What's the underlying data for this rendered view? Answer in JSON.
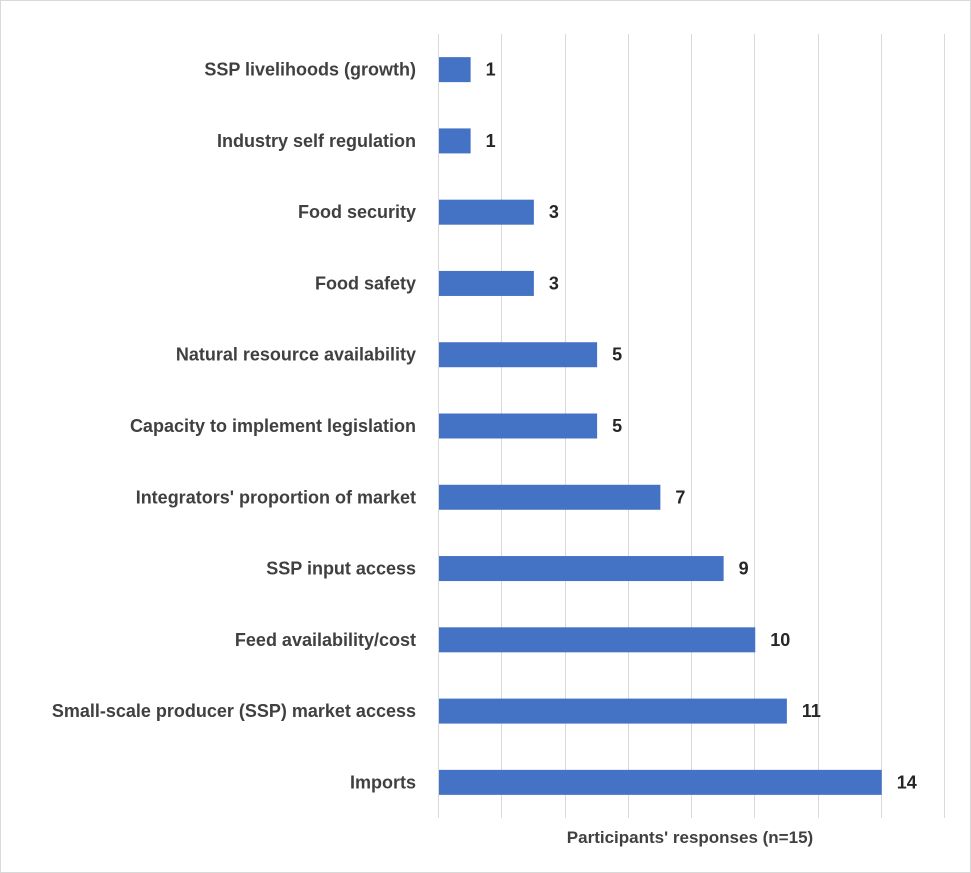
{
  "chart_data": {
    "type": "bar",
    "orientation": "horizontal",
    "categories": [
      "SSP livelihoods (growth)",
      "Industry self regulation",
      "Food security",
      "Food safety",
      "Natural resource availability",
      "Capacity to implement legislation",
      "Integrators' proportion of market",
      "SSP input access",
      "Feed availability/cost",
      "Small-scale producer (SSP) market access",
      "Imports"
    ],
    "series": [
      {
        "values": [
          1,
          1,
          3,
          3,
          5,
          5,
          7,
          9,
          10,
          11,
          14
        ]
      }
    ],
    "xlabel": "Participants' responses (n=15)",
    "xlim": [
      0,
      16
    ],
    "major_unit": 2,
    "grid": "vertical",
    "data_labels": true,
    "bar_color": "#4472c4"
  }
}
